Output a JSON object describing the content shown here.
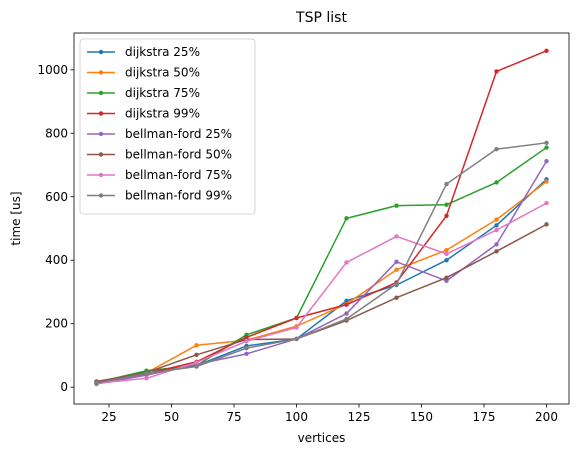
{
  "chart_data": {
    "type": "line",
    "title": "TSP list",
    "xlabel": "vertices",
    "ylabel": "time [us]",
    "xlim": [
      11,
      209
    ],
    "ylim": [
      -53,
      1116
    ],
    "xticks": [
      25,
      50,
      75,
      100,
      125,
      150,
      175,
      200
    ],
    "yticks": [
      0,
      200,
      400,
      600,
      800,
      1000
    ],
    "grid": false,
    "legend_position": "top-left",
    "x": [
      20,
      40,
      60,
      80,
      100,
      120,
      140,
      160,
      180,
      200
    ],
    "series": [
      {
        "name": "dijkstra 25%",
        "color": "#1f77b4",
        "values": [
          14,
          50,
          68,
          130,
          152,
          272,
          322,
          400,
          510,
          655
        ]
      },
      {
        "name": "dijkstra 50%",
        "color": "#ff7f0e",
        "values": [
          16,
          45,
          132,
          148,
          192,
          262,
          370,
          432,
          528,
          648
        ]
      },
      {
        "name": "dijkstra 75%",
        "color": "#2ca02c",
        "values": [
          15,
          52,
          68,
          165,
          218,
          532,
          572,
          575,
          645,
          755
        ]
      },
      {
        "name": "dijkstra 99%",
        "color": "#d62728",
        "values": [
          17,
          42,
          80,
          157,
          218,
          260,
          330,
          540,
          995,
          1060
        ]
      },
      {
        "name": "bellman-ford 25%",
        "color": "#9467bd",
        "values": [
          10,
          38,
          72,
          105,
          152,
          232,
          395,
          335,
          450,
          712
        ]
      },
      {
        "name": "bellman-ford 50%",
        "color": "#8c564b",
        "values": [
          18,
          46,
          102,
          150,
          152,
          210,
          282,
          345,
          428,
          513
        ]
      },
      {
        "name": "bellman-ford 75%",
        "color": "#e377c2",
        "values": [
          12,
          28,
          78,
          145,
          188,
          393,
          475,
          420,
          495,
          580
        ]
      },
      {
        "name": "bellman-ford 99%",
        "color": "#7f7f7f",
        "values": [
          13,
          43,
          65,
          123,
          152,
          215,
          325,
          640,
          750,
          770
        ]
      }
    ]
  }
}
